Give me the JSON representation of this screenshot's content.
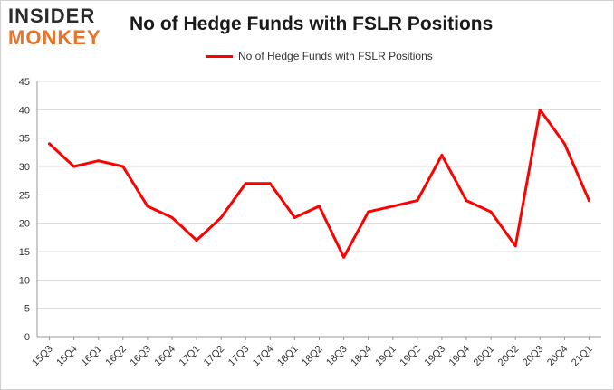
{
  "logo": {
    "line1": "INSIDER",
    "line2": "MONKEY"
  },
  "chart_data": {
    "type": "line",
    "title": "No of Hedge Funds with FSLR Positions",
    "legend": "top-center",
    "grid": true,
    "ylim": [
      0,
      45
    ],
    "yticks": [
      0,
      5,
      10,
      15,
      20,
      25,
      30,
      35,
      40,
      45
    ],
    "categories": [
      "15Q3",
      "15Q4",
      "16Q1",
      "16Q2",
      "16Q3",
      "16Q4",
      "17Q1",
      "17Q2",
      "17Q3",
      "17Q4",
      "18Q1",
      "18Q2",
      "18Q3",
      "18Q4",
      "19Q1",
      "19Q2",
      "19Q3",
      "19Q4",
      "20Q1",
      "20Q2",
      "20Q3",
      "20Q4",
      "21Q1"
    ],
    "series": [
      {
        "name": "No of Hedge Funds with FSLR Positions",
        "color": "#ff0000",
        "values": [
          34,
          30,
          31,
          30,
          23,
          21,
          17,
          21,
          27,
          27,
          21,
          23,
          14,
          22,
          23,
          24,
          32,
          24,
          22,
          16,
          40,
          34,
          24
        ]
      }
    ]
  }
}
